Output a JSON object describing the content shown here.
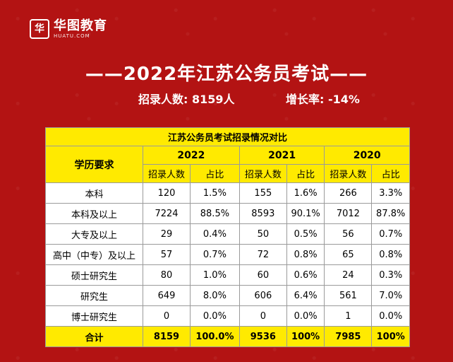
{
  "logo": {
    "name_cn": "华图教育",
    "name_en": "HUATU.COM",
    "mark": "华"
  },
  "headline": "——2022年江苏公务员考试——",
  "stats": {
    "recruit": "招录人数: 8159人",
    "growth": "增长率: -14%"
  },
  "table": {
    "caption": "江苏公务员考试招录情况对比",
    "edu_header": "学历要求",
    "years": [
      "2022",
      "2021",
      "2020"
    ],
    "sub_headers": [
      "招录人数",
      "占比"
    ],
    "rows": [
      {
        "edu": "本科",
        "v": [
          "120",
          "1.5%",
          "155",
          "1.6%",
          "266",
          "3.3%"
        ]
      },
      {
        "edu": "本科及以上",
        "v": [
          "7224",
          "88.5%",
          "8593",
          "90.1%",
          "7012",
          "87.8%"
        ]
      },
      {
        "edu": "大专及以上",
        "v": [
          "29",
          "0.4%",
          "50",
          "0.5%",
          "56",
          "0.7%"
        ]
      },
      {
        "edu": "高中（中专）及以上",
        "v": [
          "57",
          "0.7%",
          "72",
          "0.8%",
          "65",
          "0.8%"
        ]
      },
      {
        "edu": "硕士研究生",
        "v": [
          "80",
          "1.0%",
          "60",
          "0.6%",
          "24",
          "0.3%"
        ]
      },
      {
        "edu": "研究生",
        "v": [
          "649",
          "8.0%",
          "606",
          "6.4%",
          "561",
          "7.0%"
        ]
      },
      {
        "edu": "博士研究生",
        "v": [
          "0",
          "0.0%",
          "0",
          "0.0%",
          "1",
          "0.0%"
        ]
      }
    ],
    "total": {
      "edu": "合计",
      "v": [
        "8159",
        "100.0%",
        "9536",
        "100%",
        "7985",
        "100%"
      ]
    }
  },
  "colors": {
    "background": "#b31313",
    "header_yellow": "#ffea00"
  }
}
